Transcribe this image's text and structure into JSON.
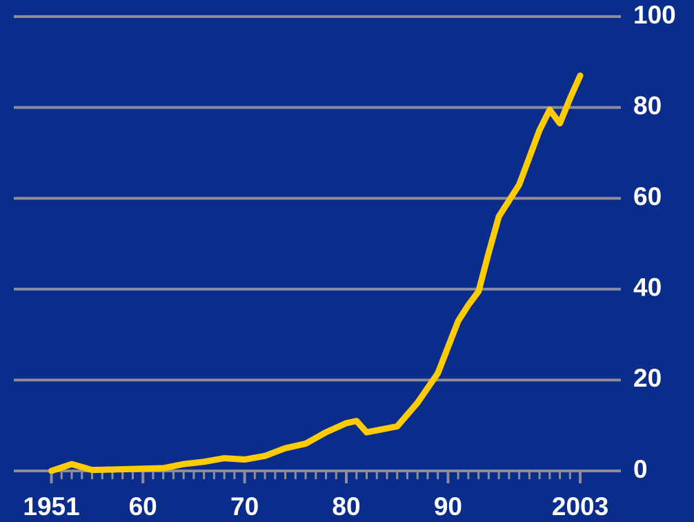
{
  "chart_data": {
    "type": "line",
    "x": [
      1951,
      1953,
      1955,
      1957,
      1960,
      1962,
      1964,
      1966,
      1968,
      1970,
      1972,
      1974,
      1976,
      1978,
      1980,
      1981,
      1982,
      1985,
      1987,
      1989,
      1991,
      1992,
      1993,
      1994,
      1995,
      1996,
      1997,
      1998,
      1999,
      2000,
      2001,
      2002,
      2003
    ],
    "values": [
      0,
      1.5,
      0.2,
      0.3,
      0.5,
      0.6,
      1.5,
      2,
      2.8,
      2.5,
      3.3,
      5,
      6,
      8.5,
      10.5,
      11,
      8.5,
      9.8,
      15,
      21.5,
      33,
      36.5,
      39.5,
      48,
      56,
      59.5,
      63,
      69,
      75,
      79.5,
      76.5,
      82,
      87
    ],
    "color": "#ffcc00",
    "xlim": [
      1947.3,
      2007
    ],
    "xticks": [
      1951,
      {
        "value": 1960,
        "label": "60"
      },
      {
        "value": 1970,
        "label": "70"
      },
      {
        "value": 1980,
        "label": "80"
      },
      {
        "value": 1990,
        "label": "90"
      },
      2003
    ],
    "ylim": [
      0,
      100
    ],
    "yticks": [
      0,
      20,
      40,
      60,
      80,
      100
    ],
    "grid": true
  }
}
